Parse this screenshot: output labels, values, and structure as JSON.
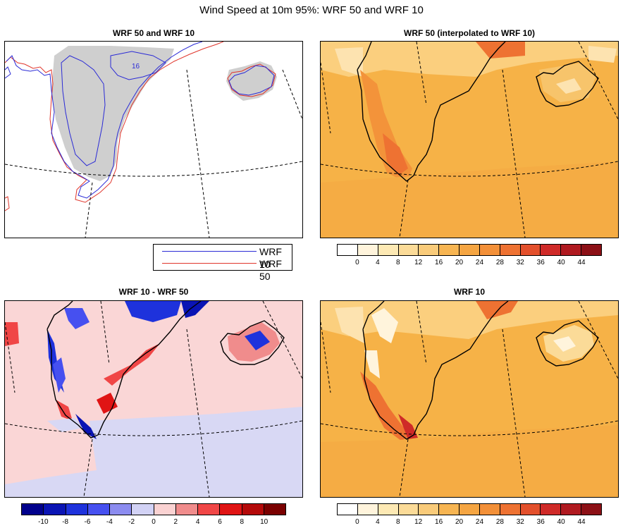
{
  "title": "Wind Speed at 10m 95%: WRF 50 and WRF 10",
  "panels": {
    "top_left": {
      "title": "WRF 50 and WRF 10",
      "contour_label": "16"
    },
    "top_right": {
      "title": "WRF 50 (interpolated to WRF 10)"
    },
    "bottom_left": {
      "title": "WRF 10 - WRF 50"
    },
    "bottom_right": {
      "title": "WRF 10"
    }
  },
  "line_legend": {
    "items": [
      {
        "label": "WRF 10",
        "color": "#2b2bd6"
      },
      {
        "label": "WRF 50",
        "color": "#e0352b"
      }
    ]
  },
  "speed_colorbar": {
    "colors": [
      "#ffffff",
      "#fff4dc",
      "#fde9b4",
      "#fbdb98",
      "#f9cb7a",
      "#f7b552",
      "#f5a542",
      "#f39038",
      "#ee7232",
      "#e3502c",
      "#cf2a28",
      "#b01a20",
      "#8c1016"
    ],
    "labels": [
      "0",
      "4",
      "8",
      "12",
      "16",
      "20",
      "24",
      "28",
      "32",
      "36",
      "40",
      "44"
    ]
  },
  "diff_colorbar": {
    "colors": [
      "#00008c",
      "#0a14b4",
      "#1e32dc",
      "#4650f0",
      "#8c8cf0",
      "#d2d2f5",
      "#fad2d2",
      "#f08c8c",
      "#f04646",
      "#e01414",
      "#b40a0a",
      "#7a0000"
    ],
    "labels": [
      "-10",
      "-8",
      "-6",
      "-4",
      "-2",
      "0",
      "2",
      "4",
      "6",
      "8",
      "10"
    ]
  },
  "colors": {
    "land_gray": "#cfcfcf",
    "base_orange": "#f6b247",
    "diff_base": "#fad6d6"
  }
}
